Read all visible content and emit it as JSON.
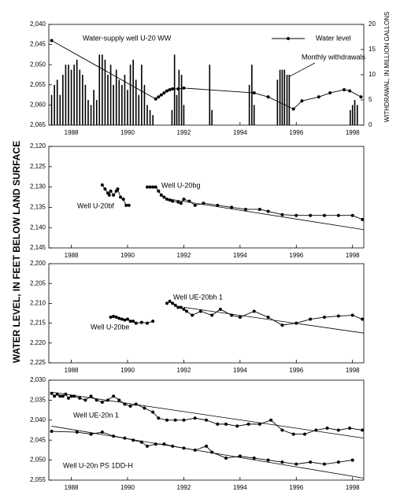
{
  "ylabel": "WATER LEVEL, IN FEET BELOW LAND SURFACE",
  "chart_data": [
    {
      "type": "line",
      "title": "Water-supply well U-20 WW",
      "legend": "upper right",
      "xlim": [
        1987.2,
        1998.4
      ],
      "xticks": [
        1988,
        1990,
        1992,
        1994,
        1996,
        1998
      ],
      "ylim": [
        2040,
        2065
      ],
      "y_inverted": true,
      "yticks": [
        {
          "value": 2040,
          "label": "2,040"
        },
        {
          "value": 2045,
          "label": "2,045"
        },
        {
          "value": 2050,
          "label": "2,050"
        },
        {
          "value": 2055,
          "label": "2,055"
        },
        {
          "value": 2060,
          "label": "2,060"
        },
        {
          "value": 2065,
          "label": "2,065"
        }
      ],
      "y2lim": [
        0,
        20
      ],
      "y2ticks": [
        0,
        5,
        10,
        15,
        20
      ],
      "y2label": "WITHDRAWAL, IN MILLION GALLONS",
      "series": [
        {
          "name": "Water level",
          "type": "line",
          "color": "#000000",
          "x": [
            1987.3,
            1991.0,
            1991.1,
            1991.2,
            1991.3,
            1991.4,
            1991.5,
            1991.6,
            1991.8,
            1992.0,
            1994.5,
            1995.0,
            1995.9,
            1996.2,
            1996.8,
            1997.2,
            1997.7,
            1997.9,
            1998.3
          ],
          "values": [
            2044,
            2058.5,
            2058,
            2057.5,
            2057,
            2056.5,
            2056.2,
            2056,
            2056,
            2055.8,
            2057,
            2058,
            2061,
            2059,
            2058,
            2057,
            2056.2,
            2056.5,
            2058
          ]
        },
        {
          "name": "Monthly withdrawals",
          "type": "bar",
          "axis": "y2",
          "color": "#000000",
          "x": [
            1987.3,
            1987.4,
            1987.5,
            1987.6,
            1987.7,
            1987.8,
            1987.9,
            1988.0,
            1988.1,
            1988.2,
            1988.3,
            1988.4,
            1988.5,
            1988.6,
            1988.7,
            1988.8,
            1988.9,
            1989.0,
            1989.1,
            1989.2,
            1989.3,
            1989.4,
            1989.5,
            1989.6,
            1989.7,
            1989.8,
            1989.9,
            1990.0,
            1990.1,
            1990.2,
            1990.3,
            1990.4,
            1990.5,
            1990.6,
            1990.7,
            1990.8,
            1990.9,
            1991.58,
            1991.67,
            1991.75,
            1991.83,
            1991.92,
            1992.0,
            1992.92,
            1993.0,
            1994.33,
            1994.42,
            1994.5,
            1995.33,
            1995.42,
            1995.5,
            1995.58,
            1995.67,
            1995.75,
            1997.92,
            1998.0,
            1998.08,
            1998.17
          ],
          "values": [
            6,
            8,
            9,
            6,
            10,
            12,
            12,
            11,
            12,
            13,
            11,
            10,
            8,
            5,
            4,
            7,
            5,
            14,
            14,
            13,
            10,
            12,
            8,
            11,
            9,
            8,
            10,
            7,
            12,
            13,
            9,
            6,
            12,
            8,
            4,
            3,
            2,
            3,
            14,
            6,
            11,
            10,
            4,
            12,
            3,
            8,
            12,
            4,
            9,
            11,
            11,
            11,
            10,
            10,
            3,
            4,
            5,
            4
          ]
        }
      ]
    },
    {
      "type": "line",
      "xlim": [
        1987.2,
        1998.4
      ],
      "xticks": [
        1988,
        1990,
        1992,
        1994,
        1996,
        1998
      ],
      "ylim": [
        2120,
        2145
      ],
      "y_inverted": true,
      "yticks": [
        {
          "value": 2120,
          "label": "2,120"
        },
        {
          "value": 2125,
          "label": "2,125"
        },
        {
          "value": 2130,
          "label": "2,130"
        },
        {
          "value": 2135,
          "label": "2,135"
        },
        {
          "value": 2140,
          "label": "2,140"
        },
        {
          "value": 2145,
          "label": "2,145"
        }
      ],
      "series": [
        {
          "name": "Well U-20bf",
          "type": "line",
          "color": "#000000",
          "x": [
            1989.1,
            1989.2,
            1989.3,
            1989.35,
            1989.4,
            1989.5,
            1989.6,
            1989.65,
            1989.75,
            1989.85,
            1989.95,
            1990.05
          ],
          "values": [
            2129.5,
            2130.5,
            2131.5,
            2132,
            2131,
            2132,
            2131,
            2130.5,
            2132.5,
            2133,
            2134.5,
            2134.5
          ]
        },
        {
          "name": "Well U-20bg",
          "type": "line",
          "color": "#000000",
          "x": [
            1990.7,
            1990.8,
            1990.9,
            1991.0,
            1991.1,
            1991.2,
            1991.3,
            1991.4,
            1991.5,
            1991.6,
            1991.8,
            1991.9,
            1992.0,
            1992.2,
            1992.4,
            1992.7,
            1993.2,
            1993.7,
            1994.2,
            1994.7,
            1995.0,
            1995.5,
            1996.0,
            1996.5,
            1997.0,
            1997.5,
            1998.0,
            1998.35
          ],
          "values": [
            2130,
            2130,
            2130,
            2130,
            2131,
            2132,
            2132.5,
            2133,
            2133.2,
            2133.5,
            2133.7,
            2134,
            2133,
            2133.5,
            2134.5,
            2134,
            2134.5,
            2135,
            2135.5,
            2135.5,
            2136,
            2136.8,
            2137,
            2137,
            2137,
            2137,
            2137,
            2138
          ]
        }
      ],
      "trend_lines": [
        {
          "x": [
            1991.5,
            1998.4
          ],
          "values": [
            2133,
            2140.5
          ]
        }
      ]
    },
    {
      "type": "line",
      "xlim": [
        1987.2,
        1998.4
      ],
      "xticks": [
        1988,
        1990,
        1992,
        1994,
        1996,
        1998
      ],
      "ylim": [
        2200,
        2225
      ],
      "y_inverted": true,
      "yticks": [
        {
          "value": 2200,
          "label": "2,200"
        },
        {
          "value": 2205,
          "label": "2,205"
        },
        {
          "value": 2210,
          "label": "2,210"
        },
        {
          "value": 2215,
          "label": "2,215"
        },
        {
          "value": 2220,
          "label": "2,220"
        },
        {
          "value": 2225,
          "label": "2,225"
        }
      ],
      "series": [
        {
          "name": "Well U-20be",
          "type": "line",
          "color": "#000000",
          "x": [
            1989.4,
            1989.5,
            1989.6,
            1989.7,
            1989.8,
            1989.9,
            1990.0,
            1990.1,
            1990.2,
            1990.3,
            1990.5,
            1990.7,
            1990.9
          ],
          "values": [
            2213.5,
            2213.3,
            2213.5,
            2213.8,
            2214,
            2214.2,
            2214,
            2214.5,
            2214.5,
            2215,
            2214.8,
            2215,
            2214.5
          ]
        },
        {
          "name": "Well UE-20bh 1",
          "type": "line",
          "color": "#000000",
          "x": [
            1991.4,
            1991.5,
            1991.6,
            1991.7,
            1991.8,
            1991.9,
            1992.0,
            1992.1,
            1992.3,
            1992.6,
            1993.0,
            1993.3,
            1993.7,
            1994.0,
            1994.5,
            1995.0,
            1995.5,
            1996.0,
            1996.5,
            1997.0,
            1997.5,
            1998.0,
            1998.35
          ],
          "values": [
            2210,
            2209.5,
            2210,
            2210.5,
            2211,
            2211,
            2211.5,
            2212,
            2213,
            2212,
            2213,
            2211.5,
            2213,
            2213.5,
            2212,
            2213.5,
            2215.5,
            2215,
            2214,
            2213.5,
            2213.2,
            2213,
            2214
          ]
        }
      ],
      "trend_lines": [
        {
          "x": [
            1992.0,
            1998.4
          ],
          "values": [
            2211,
            2217.5
          ]
        }
      ]
    },
    {
      "type": "line",
      "xlim": [
        1987.2,
        1998.4
      ],
      "xticks": [
        1988,
        1990,
        1992,
        1994,
        1996,
        1998
      ],
      "ylim": [
        2030,
        2055
      ],
      "y_inverted": true,
      "yticks": [
        {
          "value": 2030,
          "label": "2,030"
        },
        {
          "value": 2035,
          "label": "2,035"
        },
        {
          "value": 2040,
          "label": "2,040"
        },
        {
          "value": 2045,
          "label": "2,045"
        },
        {
          "value": 2050,
          "label": "2,050"
        },
        {
          "value": 2055,
          "label": "2,055"
        }
      ],
      "series": [
        {
          "name": "Well UE-20n 1",
          "type": "line",
          "color": "#000000",
          "x": [
            1987.3,
            1987.4,
            1987.5,
            1987.6,
            1987.7,
            1987.8,
            1987.9,
            1988.0,
            1988.1,
            1988.3,
            1988.5,
            1988.7,
            1988.9,
            1989.1,
            1989.3,
            1989.5,
            1989.7,
            1989.9,
            1990.1,
            1990.3,
            1990.6,
            1990.9,
            1991.1,
            1991.4,
            1991.7,
            1992.0,
            1992.4,
            1992.8,
            1993.2,
            1993.5,
            1993.9,
            1994.3,
            1994.7,
            1995.1,
            1995.5,
            1995.9,
            1996.3,
            1996.7,
            1997.1,
            1997.5,
            1997.9,
            1998.35
          ],
          "values": [
            2033.3,
            2034,
            2033.5,
            2034,
            2034,
            2033.5,
            2034.5,
            2034,
            2034,
            2034.5,
            2035,
            2034,
            2035,
            2035.5,
            2035,
            2034,
            2035,
            2036,
            2036.5,
            2036,
            2037,
            2038,
            2039.5,
            2040,
            2040,
            2040,
            2039.5,
            2040,
            2041,
            2041,
            2041.5,
            2041,
            2041,
            2040,
            2042.5,
            2043.5,
            2043.5,
            2042.5,
            2042,
            2042.5,
            2042,
            2042.5
          ]
        },
        {
          "name": "Well U-20n PS 1DD-H",
          "type": "line",
          "color": "#000000",
          "x": [
            1987.3,
            1988.2,
            1988.7,
            1989.1,
            1989.5,
            1989.9,
            1990.2,
            1990.5,
            1990.7,
            1991.0,
            1991.3,
            1991.6,
            1992.0,
            1992.4,
            1992.8,
            1993.0,
            1993.5,
            1994.0,
            1994.5,
            1995.0,
            1995.5,
            1996.0,
            1996.5,
            1997.0,
            1997.5,
            1998.0
          ],
          "values": [
            2042.8,
            2043,
            2043.5,
            2043,
            2044,
            2044.5,
            2045,
            2045.5,
            2046.5,
            2046,
            2046,
            2046.5,
            2047,
            2047.5,
            2046.5,
            2048,
            2049.5,
            2049,
            2049.5,
            2050,
            2050.5,
            2051,
            2050.5,
            2051,
            2050.5,
            2050
          ]
        }
      ],
      "trend_lines": [
        {
          "x": [
            1987.3,
            1998.4
          ],
          "values": [
            2033,
            2044.5
          ]
        },
        {
          "x": [
            1987.3,
            1998.4
          ],
          "values": [
            2041.5,
            2054.5
          ]
        }
      ]
    }
  ]
}
